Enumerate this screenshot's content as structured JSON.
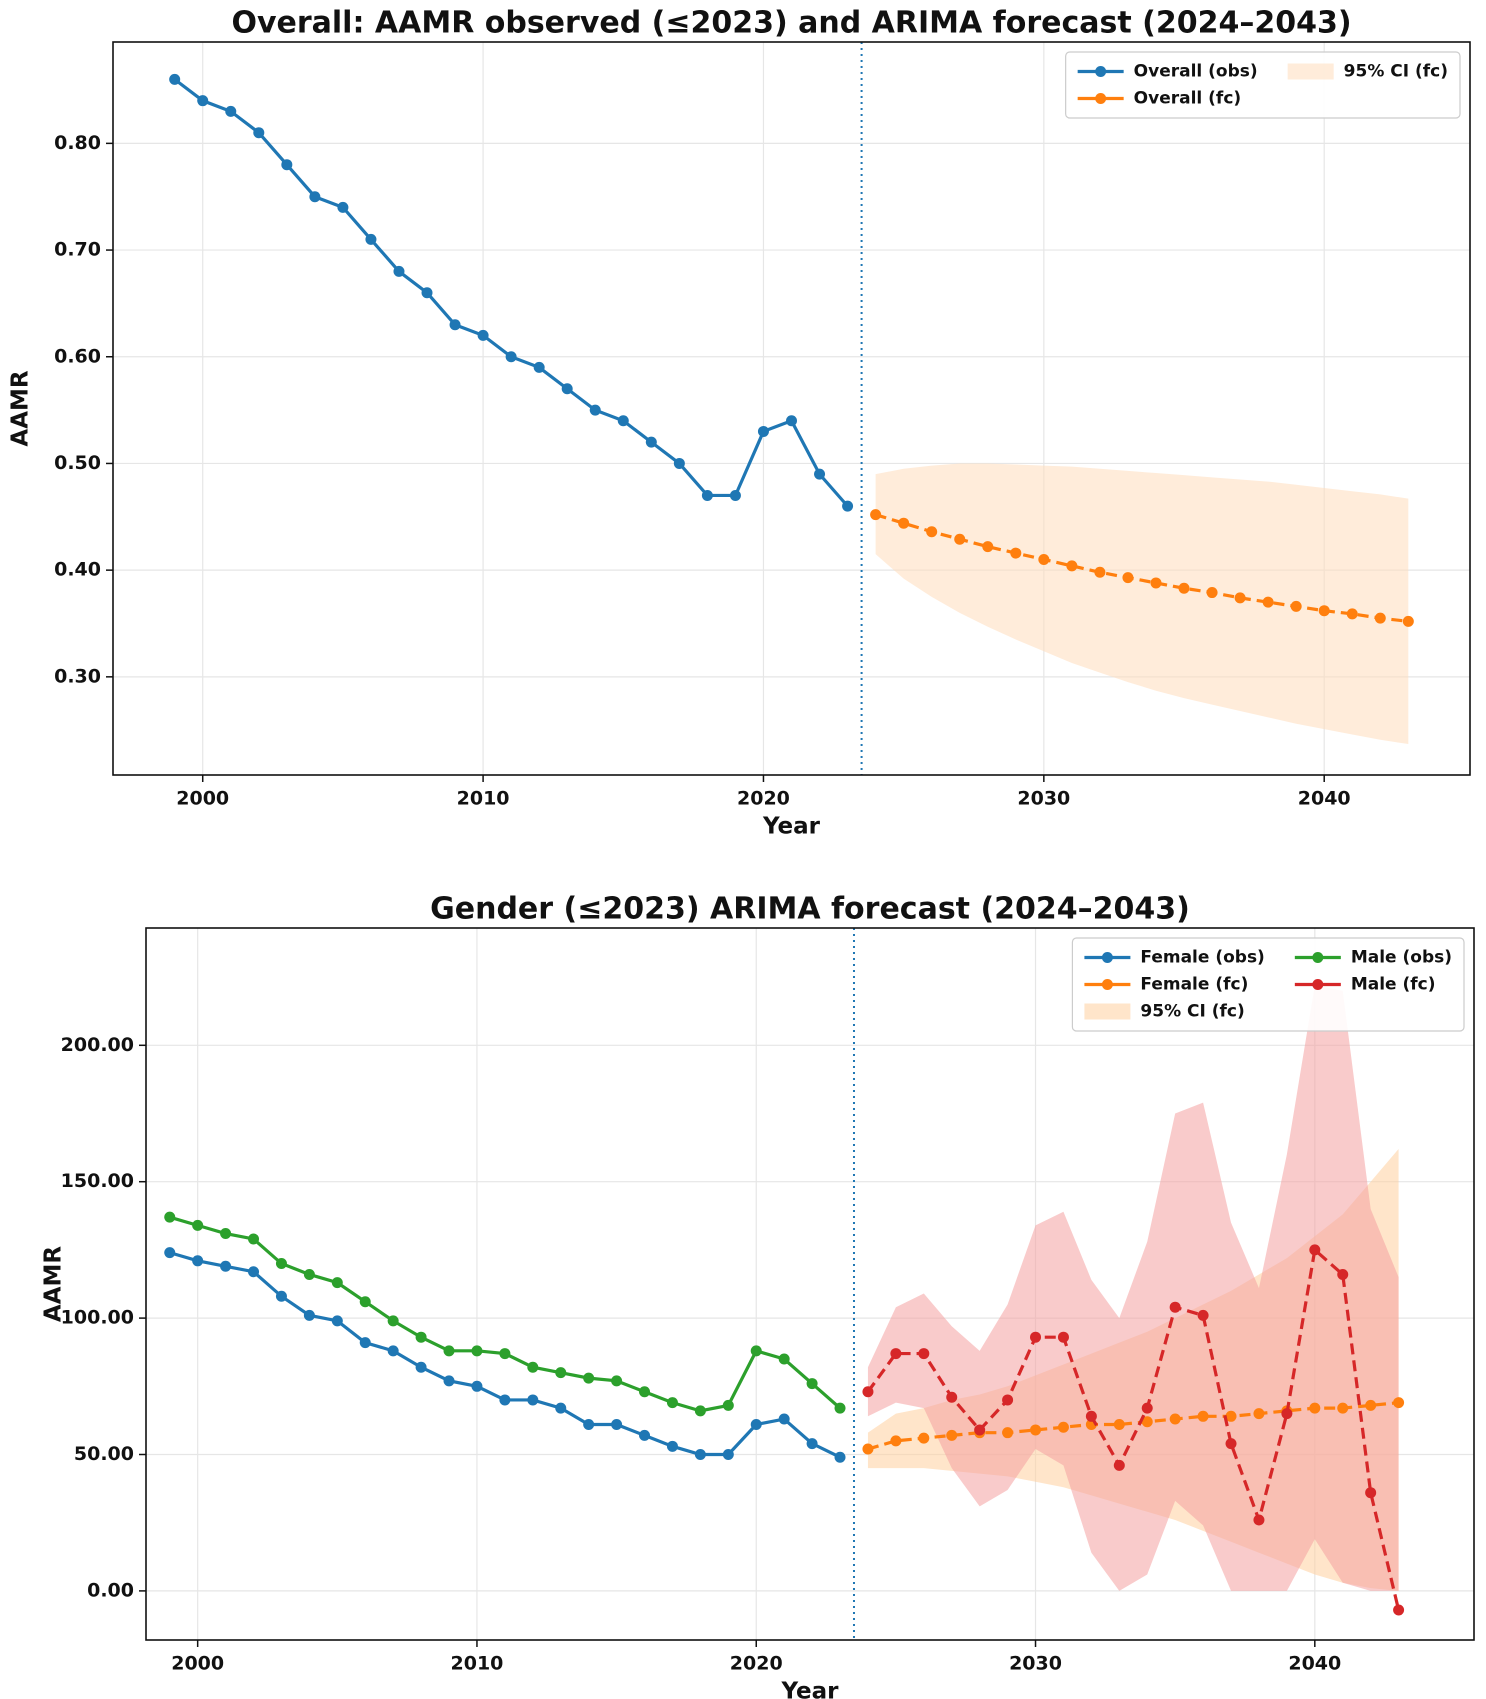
{
  "chart_data": [
    {
      "type": "line",
      "title": "Overall: AAMR observed (≤2023) and ARIMA forecast (2024–2043)",
      "x_label": "Year",
      "y_label": "AAMR",
      "xlim": [
        1996.8,
        2045.2
      ],
      "xticks": [
        2000,
        2010,
        2020,
        2030,
        2040
      ],
      "ylim": [
        0.208,
        0.895
      ],
      "yticks": [
        {
          "value": 0.3,
          "label": "0.30"
        },
        {
          "value": 0.4,
          "label": "0.40"
        },
        {
          "value": 0.5,
          "label": "0.50"
        },
        {
          "value": 0.6,
          "label": "0.60"
        },
        {
          "value": 0.7,
          "label": "0.70"
        },
        {
          "value": 0.8,
          "label": "0.80"
        }
      ],
      "grid": true,
      "legend": "upper right",
      "divider_x": 2023.5,
      "divider_color": "#1f77b4",
      "series": [
        {
          "name": "Overall (obs)",
          "kind": "line",
          "color": "#1f77b4",
          "dashed": false,
          "x": [
            1999,
            2000,
            2001,
            2002,
            2003,
            2004,
            2005,
            2006,
            2007,
            2008,
            2009,
            2010,
            2011,
            2012,
            2013,
            2014,
            2015,
            2016,
            2017,
            2018,
            2019,
            2020,
            2021,
            2022,
            2023
          ],
          "values": [
            0.86,
            0.84,
            0.83,
            0.81,
            0.78,
            0.75,
            0.74,
            0.71,
            0.68,
            0.66,
            0.63,
            0.62,
            0.6,
            0.59,
            0.57,
            0.55,
            0.54,
            0.52,
            0.5,
            0.47,
            0.47,
            0.53,
            0.54,
            0.49,
            0.46
          ]
        },
        {
          "name": "Overall (fc)",
          "kind": "line",
          "color": "#ff7f0e",
          "dashed": true,
          "x": [
            2024,
            2025,
            2026,
            2027,
            2028,
            2029,
            2030,
            2031,
            2032,
            2033,
            2034,
            2035,
            2036,
            2037,
            2038,
            2039,
            2040,
            2041,
            2042,
            2043
          ],
          "values": [
            0.452,
            0.444,
            0.436,
            0.429,
            0.422,
            0.416,
            0.41,
            0.404,
            0.398,
            0.393,
            0.388,
            0.383,
            0.379,
            0.374,
            0.37,
            0.366,
            0.362,
            0.359,
            0.355,
            0.352
          ]
        },
        {
          "name": "95% CI (fc)",
          "kind": "band",
          "color": "#ffdcbc",
          "x": [
            2024,
            2025,
            2026,
            2027,
            2028,
            2029,
            2030,
            2031,
            2032,
            2033,
            2034,
            2035,
            2036,
            2037,
            2038,
            2039,
            2040,
            2041,
            2042,
            2043
          ],
          "upper": [
            0.49,
            0.495,
            0.498,
            0.5,
            0.5,
            0.499,
            0.498,
            0.497,
            0.495,
            0.493,
            0.491,
            0.489,
            0.487,
            0.485,
            0.483,
            0.48,
            0.477,
            0.474,
            0.471,
            0.467
          ],
          "lower": [
            0.415,
            0.392,
            0.375,
            0.36,
            0.347,
            0.335,
            0.324,
            0.313,
            0.304,
            0.295,
            0.287,
            0.28,
            0.274,
            0.268,
            0.262,
            0.256,
            0.251,
            0.246,
            0.241,
            0.237
          ]
        }
      ]
    },
    {
      "type": "line",
      "title": "Gender (≤2023) ARIMA forecast (2024–2043)",
      "x_label": "Year",
      "y_label": "AAMR",
      "xlim": [
        1998.15,
        2045.7
      ],
      "xticks": [
        2000,
        2010,
        2020,
        2030,
        2040
      ],
      "ylim": [
        -18,
        243
      ],
      "yticks": [
        {
          "value": 0,
          "label": "0.00"
        },
        {
          "value": 50,
          "label": "50.00"
        },
        {
          "value": 100,
          "label": "100.00"
        },
        {
          "value": 150,
          "label": "150.00"
        },
        {
          "value": 200,
          "label": "200.00"
        }
      ],
      "grid": true,
      "legend": "upper right",
      "divider_x": 2023.5,
      "divider_color": "#1f77b4",
      "series": [
        {
          "name": "Female (obs)",
          "kind": "line",
          "color": "#1f77b4",
          "dashed": false,
          "x": [
            1999,
            2000,
            2001,
            2002,
            2003,
            2004,
            2005,
            2006,
            2007,
            2008,
            2009,
            2010,
            2011,
            2012,
            2013,
            2014,
            2015,
            2016,
            2017,
            2018,
            2019,
            2020,
            2021,
            2022,
            2023
          ],
          "values": [
            124,
            121,
            119,
            117,
            108,
            101,
            99,
            91,
            88,
            82,
            77,
            75,
            70,
            70,
            67,
            61,
            61,
            57,
            53,
            50,
            50,
            61,
            63,
            54,
            49
          ]
        },
        {
          "name": "Female (fc)",
          "kind": "line",
          "color": "#ff7f0e",
          "dashed": true,
          "x": [
            2024,
            2025,
            2026,
            2027,
            2028,
            2029,
            2030,
            2031,
            2032,
            2033,
            2034,
            2035,
            2036,
            2037,
            2038,
            2039,
            2040,
            2041,
            2042,
            2043
          ],
          "values": [
            52,
            55,
            56,
            57,
            58,
            58,
            59,
            60,
            61,
            61,
            62,
            63,
            64,
            64,
            65,
            66,
            67,
            67,
            68,
            69
          ]
        },
        {
          "name": "95% CI (fc)",
          "kind": "band",
          "color": "#ffcf9f",
          "x": [
            2024,
            2025,
            2026,
            2027,
            2028,
            2029,
            2030,
            2031,
            2032,
            2033,
            2034,
            2035,
            2036,
            2037,
            2038,
            2039,
            2040,
            2041,
            2042,
            2043
          ],
          "upper": [
            58,
            65,
            67,
            70,
            72,
            75,
            79,
            83,
            87,
            91,
            95,
            100,
            105,
            110,
            116,
            122,
            130,
            138,
            150,
            162
          ],
          "lower": [
            45,
            45,
            45,
            44,
            43,
            42,
            40,
            38,
            35,
            32,
            29,
            26,
            22,
            18,
            14,
            10,
            6,
            3,
            1,
            0
          ]
        },
        {
          "name": "Male (obs)",
          "kind": "line",
          "color": "#2ca02c",
          "dashed": false,
          "x": [
            1999,
            2000,
            2001,
            2002,
            2003,
            2004,
            2005,
            2006,
            2007,
            2008,
            2009,
            2010,
            2011,
            2012,
            2013,
            2014,
            2015,
            2016,
            2017,
            2018,
            2019,
            2020,
            2021,
            2022,
            2023
          ],
          "values": [
            137,
            134,
            131,
            129,
            120,
            116,
            113,
            106,
            99,
            93,
            88,
            88,
            87,
            82,
            80,
            78,
            77,
            73,
            69,
            66,
            68,
            88,
            85,
            76,
            67
          ]
        },
        {
          "name": "Male (fc)",
          "kind": "line",
          "color": "#d62728",
          "dashed": true,
          "x": [
            2024,
            2025,
            2026,
            2027,
            2028,
            2029,
            2030,
            2031,
            2032,
            2033,
            2034,
            2035,
            2036,
            2037,
            2038,
            2039,
            2040,
            2041,
            2042,
            2043
          ],
          "values": [
            73,
            87,
            87,
            71,
            59,
            70,
            93,
            93,
            64,
            46,
            67,
            104,
            101,
            54,
            26,
            65,
            125,
            116,
            36,
            -7
          ]
        },
        {
          "kind": "band",
          "color": "#f4a0a0",
          "x": [
            2024,
            2025,
            2026,
            2027,
            2028,
            2029,
            2030,
            2031,
            2032,
            2033,
            2034,
            2035,
            2036,
            2037,
            2038,
            2039,
            2040,
            2041,
            2042,
            2043
          ],
          "upper": [
            82,
            104,
            109,
            97,
            88,
            105,
            134,
            139,
            114,
            100,
            128,
            175,
            179,
            135,
            111,
            160,
            222,
            220,
            140,
            115
          ],
          "lower": [
            64,
            69,
            67,
            45,
            31,
            37,
            52,
            46,
            14,
            0,
            6,
            33,
            24,
            0,
            0,
            0,
            19,
            3,
            0,
            0
          ]
        }
      ]
    }
  ]
}
